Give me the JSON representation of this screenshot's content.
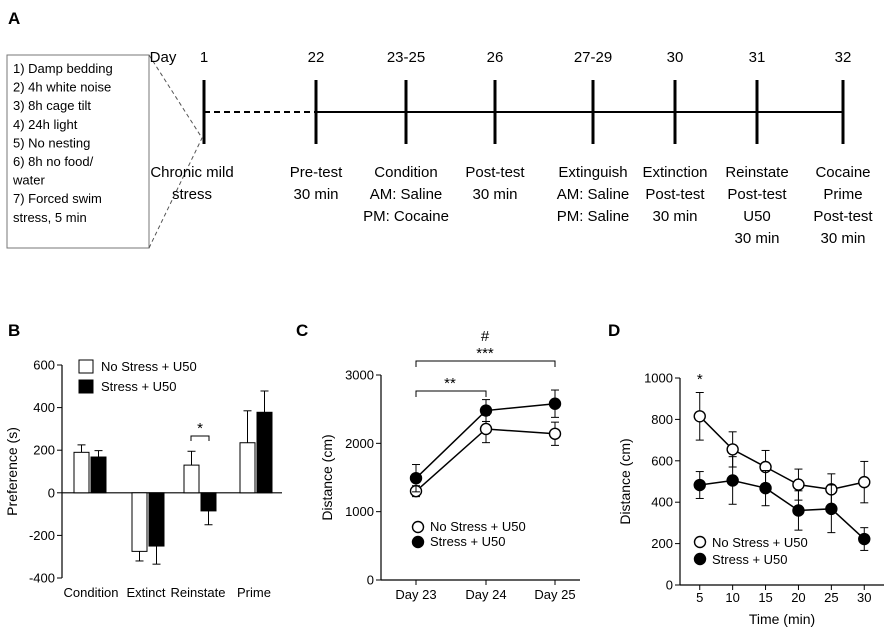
{
  "panels": {
    "A": "A",
    "B": "B",
    "C": "C",
    "D": "D"
  },
  "timeline": {
    "day_label": "Day",
    "stressors": [
      "1) Damp bedding",
      "2) 4h white noise",
      "3) 8h cage tilt",
      "4) 24h light",
      "5) No nesting",
      "6) 8h no food/",
      "water",
      "7) Forced swim",
      "stress, 5 min"
    ],
    "stages": [
      {
        "day": "1",
        "lines": [
          "Chronic mild",
          "stress"
        ]
      },
      {
        "day": "22",
        "lines": [
          "Pre-test",
          "30 min"
        ]
      },
      {
        "day": "23-25",
        "lines": [
          "Condition",
          "AM: Saline",
          "PM: Cocaine"
        ]
      },
      {
        "day": "26",
        "lines": [
          "Post-test",
          "30 min"
        ]
      },
      {
        "day": "27-29",
        "lines": [
          "Extinguish",
          "AM: Saline",
          "PM: Saline"
        ]
      },
      {
        "day": "30",
        "lines": [
          "Extinction",
          "Post-test",
          "30 min"
        ]
      },
      {
        "day": "31",
        "lines": [
          "Reinstate",
          "Post-test",
          "U50",
          "30 min"
        ]
      },
      {
        "day": "32",
        "lines": [
          "Cocaine",
          "Prime",
          "Post-test",
          "30 min"
        ]
      }
    ]
  },
  "chart_data": [
    {
      "id": "B",
      "type": "bar",
      "categories": [
        "Condition",
        "Extinct",
        "Reinstate",
        "Prime"
      ],
      "series": [
        {
          "name": "No Stress + U50",
          "color": "#ffffff",
          "values": [
            190,
            -275,
            130,
            235
          ],
          "errors": [
            35,
            45,
            65,
            150
          ]
        },
        {
          "name": "Stress + U50",
          "color": "#000000",
          "values": [
            168,
            -250,
            -85,
            378
          ],
          "errors": [
            30,
            85,
            65,
            100
          ]
        }
      ],
      "ylabel": "Preference (s)",
      "ylim": [
        -400,
        600
      ],
      "yticks": [
        -400,
        -200,
        0,
        200,
        400,
        600
      ],
      "significance": [
        {
          "category": "Reinstate",
          "label": "*"
        }
      ]
    },
    {
      "id": "C",
      "type": "line",
      "categories": [
        "Day 23",
        "Day 24",
        "Day 25"
      ],
      "series": [
        {
          "name": "No Stress + U50",
          "marker": "open",
          "values": [
            1300,
            2210,
            2140
          ],
          "errors": [
            80,
            200,
            170
          ]
        },
        {
          "name": "Stress + U50",
          "marker": "filled",
          "values": [
            1490,
            2480,
            2580
          ],
          "errors": [
            200,
            160,
            200
          ]
        }
      ],
      "ylabel": "Distance (cm)",
      "ylim": [
        0,
        3000
      ],
      "yticks": [
        0,
        1000,
        2000,
        3000
      ],
      "significance": [
        {
          "from": "Day 23",
          "to": "Day 24",
          "label": "**"
        },
        {
          "from": "Day 23",
          "to": "Day 25",
          "label": "***"
        },
        {
          "from": "Day 23",
          "to": "Day 25",
          "label": "#"
        }
      ]
    },
    {
      "id": "D",
      "type": "line",
      "x": [
        5,
        10,
        15,
        20,
        25,
        30
      ],
      "series": [
        {
          "name": "No Stress + U50",
          "marker": "open",
          "values": [
            815,
            655,
            570,
            485,
            462,
            497
          ],
          "errors": [
            115,
            85,
            80,
            75,
            75,
            100
          ]
        },
        {
          "name": "Stress + U50",
          "marker": "filled",
          "values": [
            483,
            505,
            468,
            360,
            368,
            222
          ],
          "errors": [
            65,
            115,
            85,
            95,
            115,
            55
          ]
        }
      ],
      "xlabel": "Time (min)",
      "ylabel": "Distance (cm)",
      "xlim": [
        2,
        33
      ],
      "ylim": [
        0,
        1000
      ],
      "yticks": [
        0,
        200,
        400,
        600,
        800,
        1000
      ],
      "xticks": [
        5,
        10,
        15,
        20,
        25,
        30
      ],
      "significance": [
        {
          "x": 5,
          "label": "*"
        }
      ]
    }
  ]
}
